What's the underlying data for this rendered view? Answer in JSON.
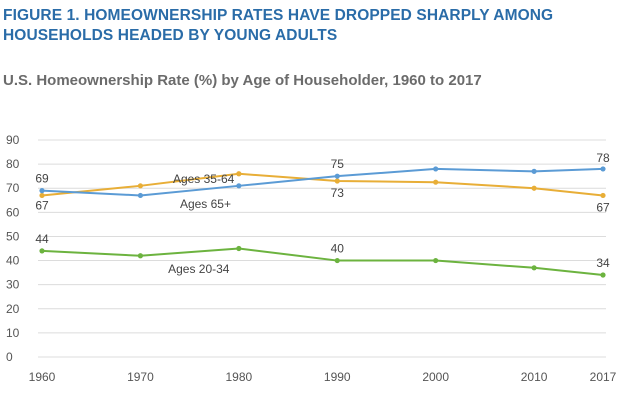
{
  "figure": {
    "title": "FIGURE 1. HOMEOWNERSHIP RATES HAVE DROPPED SHARPLY AMONG HOUSEHOLDS HEADED BY YOUNG ADULTS"
  },
  "chart_data": {
    "type": "line",
    "title": "U.S. Homeownership Rate (%) by Age of Householder, 1960 to 2017",
    "xlabel": "",
    "ylabel": "",
    "x": [
      1960,
      1970,
      1980,
      1990,
      2000,
      2010,
      2017
    ],
    "ylim": [
      0,
      90
    ],
    "yticks": [
      0,
      10,
      20,
      30,
      40,
      50,
      60,
      70,
      80,
      90
    ],
    "grid": true,
    "legend": "none",
    "series": [
      {
        "name": "Ages 35-64",
        "color": "#e8ae37",
        "values": [
          67,
          71,
          76,
          73,
          72.5,
          70,
          67
        ]
      },
      {
        "name": "Ages 65+",
        "color": "#5b9bd5",
        "values": [
          69,
          67,
          71,
          75,
          78,
          77,
          78
        ]
      },
      {
        "name": "Ages 20-34",
        "color": "#6cb33f",
        "values": [
          44,
          42,
          45,
          40,
          40,
          37,
          34
        ]
      }
    ],
    "data_labels": [
      {
        "text": "69",
        "x": 1960,
        "y": 69
      },
      {
        "text": "67",
        "x": 1960,
        "y": 67
      },
      {
        "text": "44",
        "x": 1960,
        "y": 44
      },
      {
        "text": "75",
        "x": 1990,
        "y": 75
      },
      {
        "text": "73",
        "x": 1990,
        "y": 73
      },
      {
        "text": "40",
        "x": 1990,
        "y": 40
      },
      {
        "text": "78",
        "x": 2017,
        "y": 78
      },
      {
        "text": "67",
        "x": 2017,
        "y": 67
      },
      {
        "text": "34",
        "x": 2017,
        "y": 34
      }
    ]
  }
}
